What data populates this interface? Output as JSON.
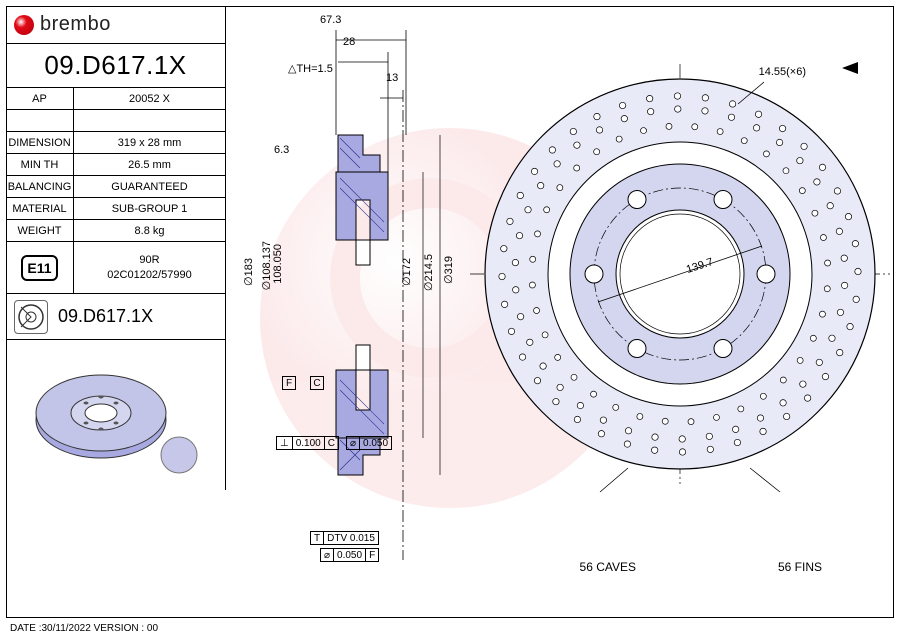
{
  "brand": "brembo",
  "part_number": "09.D617.1X",
  "specs": [
    {
      "label": "AP",
      "value": "20052 X"
    },
    {
      "label": "",
      "value": ""
    },
    {
      "label": "DIMENSION",
      "value": "319 x 28 mm"
    },
    {
      "label": "MIN TH",
      "value": "26.5 mm"
    },
    {
      "label": "BALANCING",
      "value": "GUARANTEED"
    },
    {
      "label": "MATERIAL",
      "value": "SUB-GROUP 1"
    },
    {
      "label": "WEIGHT",
      "value": "8.8 kg"
    }
  ],
  "cert": {
    "badge": "E11",
    "line1": "90R",
    "line2": "02C01202/57990"
  },
  "footer": "DATE :30/11/2022 VERSION : 00",
  "dims": {
    "top1": "67.3",
    "top2": "28",
    "top3": "13",
    "th_tol": "△TH=1.5",
    "chamfer": "6.3",
    "d_outer": "∅319",
    "d_214": "∅214.5",
    "d_172": "∅172",
    "d_108a": "∅108.137",
    "d_108b": "108.050",
    "d_183": "∅183",
    "pcd": "139.7",
    "bolt": "14.55(×6)"
  },
  "gdnt": {
    "perp": {
      "sym": "⊥",
      "tol": "0.100",
      "ref": "C"
    },
    "runout": {
      "sym": "⌀",
      "tol": "0.050"
    },
    "dtv": {
      "label": "T",
      "tol": "DTV 0.015"
    },
    "flat": {
      "sym": "⌀",
      "tol": "0.050",
      "ref": "F"
    }
  },
  "datums": {
    "f": "F",
    "c": "C"
  },
  "notes": {
    "caves": "56 CAVES",
    "fins": "56 FINS"
  },
  "colors": {
    "section_fill": "#a7a9e0",
    "section_hatch": "#2a2d8f",
    "front_fill": "#d4d6ef",
    "watermark": "#e20a17",
    "line": "#000000"
  },
  "disc": {
    "outer_d": 319,
    "inner_d": 108,
    "pcd": 139.7,
    "bolts": 6,
    "bolt_d": 14.55,
    "holes_outer_ring": 40,
    "front_view_radius": 195
  }
}
